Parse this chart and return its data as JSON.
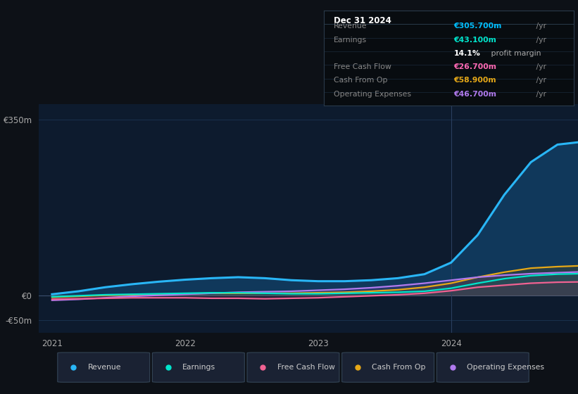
{
  "bg_color": "#0d1117",
  "plot_bg_color": "#0d1b2e",
  "info_box": {
    "title": "Dec 31 2024",
    "rows": [
      {
        "label": "Revenue",
        "value": "€305.700m",
        "suffix": " /yr",
        "value_color": "#00bfff"
      },
      {
        "label": "Earnings",
        "value": "€43.100m",
        "suffix": " /yr",
        "value_color": "#00e5cc"
      },
      {
        "label": "",
        "value": "14.1%",
        "suffix": " profit margin",
        "value_color": "#ffffff"
      },
      {
        "label": "Free Cash Flow",
        "value": "€26.700m",
        "suffix": " /yr",
        "value_color": "#ff69b4"
      },
      {
        "label": "Cash From Op",
        "value": "€58.900m",
        "suffix": " /yr",
        "value_color": "#e6a817"
      },
      {
        "label": "Operating Expenses",
        "value": "€46.700m",
        "suffix": " /yr",
        "value_color": "#b07aee"
      }
    ]
  },
  "years": [
    2021.0,
    2021.2,
    2021.4,
    2021.6,
    2021.8,
    2022.0,
    2022.2,
    2022.4,
    2022.6,
    2022.8,
    2023.0,
    2023.2,
    2023.4,
    2023.6,
    2023.8,
    2024.0,
    2024.2,
    2024.4,
    2024.6,
    2024.8,
    2024.99
  ],
  "revenue": [
    2,
    8,
    16,
    22,
    27,
    31,
    34,
    36,
    34,
    30,
    28,
    28,
    30,
    34,
    42,
    65,
    120,
    200,
    265,
    300,
    305.7
  ],
  "earnings": [
    -3,
    -1,
    1,
    2,
    3,
    4,
    5,
    5,
    4,
    3,
    3,
    4,
    5,
    6,
    8,
    14,
    24,
    33,
    39,
    42,
    43.1
  ],
  "free_cash": [
    -8,
    -7,
    -6,
    -5,
    -5,
    -5,
    -6,
    -6,
    -7,
    -6,
    -5,
    -3,
    -1,
    1,
    4,
    9,
    16,
    20,
    24,
    26,
    26.7
  ],
  "cash_from_op": [
    -4,
    -2,
    0,
    1,
    2,
    3,
    4,
    4,
    4,
    4,
    5,
    6,
    8,
    11,
    16,
    24,
    36,
    46,
    54,
    57,
    58.9
  ],
  "op_expenses": [
    -10,
    -8,
    -5,
    -2,
    0,
    2,
    4,
    6,
    7,
    8,
    10,
    12,
    15,
    19,
    24,
    30,
    36,
    40,
    43,
    45,
    46.7
  ],
  "revenue_color": "#29b6f6",
  "earnings_color": "#00e5cc",
  "free_cash_color": "#f06292",
  "cash_from_op_color": "#e6a817",
  "op_expenses_color": "#b07aee",
  "ylim": [
    -75,
    380
  ],
  "yticks": [
    -50,
    0,
    350
  ],
  "ytick_labels": [
    "-€50m",
    "€0",
    "€350m"
  ],
  "xtick_positions": [
    2021,
    2022,
    2023,
    2024
  ],
  "xtick_labels": [
    "2021",
    "2022",
    "2023",
    "2024"
  ],
  "legend_items": [
    {
      "label": "Revenue",
      "color": "#29b6f6"
    },
    {
      "label": "Earnings",
      "color": "#00e5cc"
    },
    {
      "label": "Free Cash Flow",
      "color": "#f06292"
    },
    {
      "label": "Cash From Op",
      "color": "#e6a817"
    },
    {
      "label": "Operating Expenses",
      "color": "#b07aee"
    }
  ],
  "vline_x": 2024.0,
  "grid_color": "#1e3a5a",
  "zero_line_color": "#556688"
}
